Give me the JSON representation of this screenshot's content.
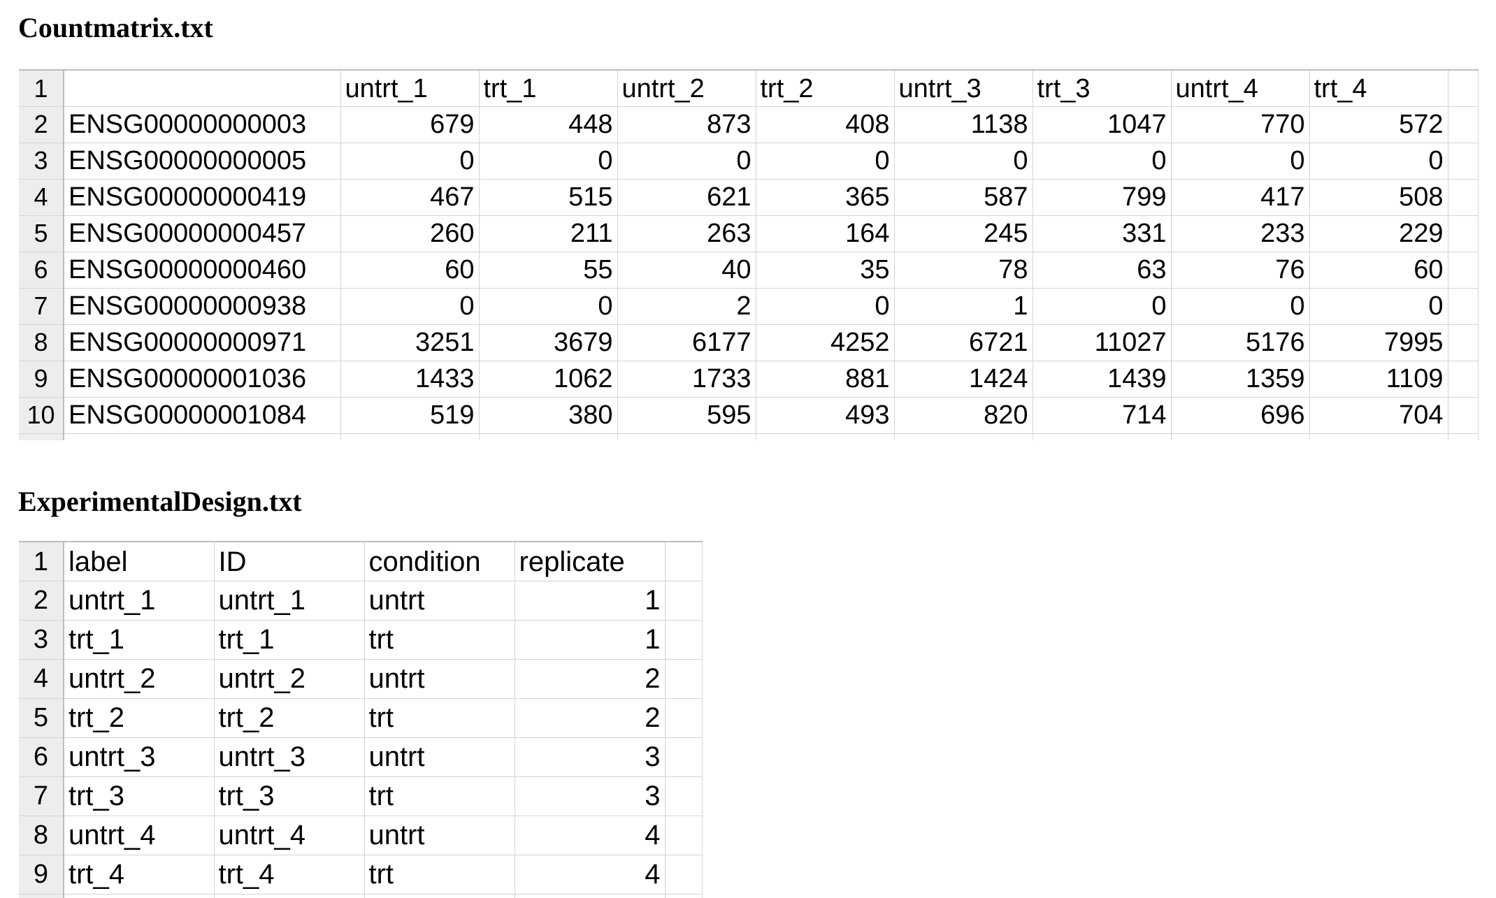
{
  "countmatrix": {
    "title": "Countmatrix.txt",
    "row_numbers": [
      "1",
      "2",
      "3",
      "4",
      "5",
      "6",
      "7",
      "8",
      "9",
      "10"
    ],
    "header": [
      "",
      "untrt_1",
      "trt_1",
      "untrt_2",
      "trt_2",
      "untrt_3",
      "trt_3",
      "untrt_4",
      "trt_4"
    ],
    "rows": [
      [
        "ENSG00000000003",
        "679",
        "448",
        "873",
        "408",
        "1138",
        "1047",
        "770",
        "572"
      ],
      [
        "ENSG00000000005",
        "0",
        "0",
        "0",
        "0",
        "0",
        "0",
        "0",
        "0"
      ],
      [
        "ENSG00000000419",
        "467",
        "515",
        "621",
        "365",
        "587",
        "799",
        "417",
        "508"
      ],
      [
        "ENSG00000000457",
        "260",
        "211",
        "263",
        "164",
        "245",
        "331",
        "233",
        "229"
      ],
      [
        "ENSG00000000460",
        "60",
        "55",
        "40",
        "35",
        "78",
        "63",
        "76",
        "60"
      ],
      [
        "ENSG00000000938",
        "0",
        "0",
        "2",
        "0",
        "1",
        "0",
        "0",
        "0"
      ],
      [
        "ENSG00000000971",
        "3251",
        "3679",
        "6177",
        "4252",
        "6721",
        "11027",
        "5176",
        "7995"
      ],
      [
        "ENSG00000001036",
        "1433",
        "1062",
        "1733",
        "881",
        "1424",
        "1439",
        "1359",
        "1109"
      ],
      [
        "ENSG00000001084",
        "519",
        "380",
        "595",
        "493",
        "820",
        "714",
        "696",
        "704"
      ]
    ]
  },
  "design": {
    "title": "ExperimentalDesign.txt",
    "row_numbers": [
      "1",
      "2",
      "3",
      "4",
      "5",
      "6",
      "7",
      "8",
      "9"
    ],
    "header": [
      "label",
      "ID",
      "condition",
      "replicate"
    ],
    "rows": [
      [
        "untrt_1",
        "untrt_1",
        "untrt",
        "1"
      ],
      [
        "trt_1",
        "trt_1",
        "trt",
        "1"
      ],
      [
        "untrt_2",
        "untrt_2",
        "untrt",
        "2"
      ],
      [
        "trt_2",
        "trt_2",
        "trt",
        "2"
      ],
      [
        "untrt_3",
        "untrt_3",
        "untrt",
        "3"
      ],
      [
        "trt_3",
        "trt_3",
        "trt",
        "3"
      ],
      [
        "untrt_4",
        "untrt_4",
        "untrt",
        "4"
      ],
      [
        "trt_4",
        "trt_4",
        "trt",
        "4"
      ]
    ]
  }
}
